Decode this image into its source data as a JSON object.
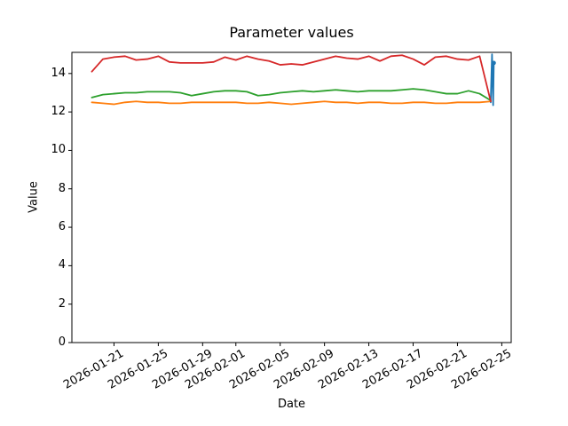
{
  "chart_data": {
    "type": "line",
    "title": "Parameter values",
    "xlabel": "Date",
    "ylabel": "Value",
    "grid": false,
    "legend": false,
    "ylim": [
      0,
      15.1
    ],
    "xlim_days": [
      -1.8,
      37.85
    ],
    "x_day_origin": "2026-01-19",
    "x_dates": [
      "2026-01-19",
      "2026-01-20",
      "2026-01-21",
      "2026-01-22",
      "2026-01-23",
      "2026-01-24",
      "2026-01-25",
      "2026-01-26",
      "2026-01-27",
      "2026-01-28",
      "2026-01-29",
      "2026-01-30",
      "2026-01-31",
      "2026-02-01",
      "2026-02-02",
      "2026-02-03",
      "2026-02-04",
      "2026-02-05",
      "2026-02-06",
      "2026-02-07",
      "2026-02-08",
      "2026-02-09",
      "2026-02-10",
      "2026-02-11",
      "2026-02-12",
      "2026-02-13",
      "2026-02-14",
      "2026-02-15",
      "2026-02-16",
      "2026-02-17",
      "2026-02-18",
      "2026-02-19",
      "2026-02-20",
      "2026-02-21",
      "2026-02-22",
      "2026-02-23",
      "2026-02-24"
    ],
    "series": [
      {
        "name": "blue",
        "color": "#1f77b4",
        "end_marker": true,
        "points": [
          {
            "x_day": 36.0,
            "value": 12.5
          },
          {
            "x_day": 36.12,
            "value": 15.0
          },
          {
            "x_day": 36.22,
            "value": 12.35
          },
          {
            "x_day": 36.28,
            "value": 14.55
          }
        ]
      },
      {
        "name": "orange",
        "color": "#ff7f0e",
        "values": [
          12.5,
          12.45,
          12.4,
          12.5,
          12.55,
          12.5,
          12.5,
          12.45,
          12.45,
          12.5,
          12.5,
          12.5,
          12.5,
          12.5,
          12.45,
          12.45,
          12.5,
          12.45,
          12.4,
          12.45,
          12.5,
          12.55,
          12.5,
          12.5,
          12.45,
          12.5,
          12.5,
          12.45,
          12.45,
          12.5,
          12.5,
          12.45,
          12.45,
          12.5,
          12.5,
          12.5,
          12.55
        ]
      },
      {
        "name": "green",
        "color": "#2ca02c",
        "values": [
          12.75,
          12.9,
          12.95,
          13.0,
          13.0,
          13.05,
          13.05,
          13.05,
          13.0,
          12.85,
          12.95,
          13.05,
          13.1,
          13.1,
          13.05,
          12.85,
          12.9,
          13.0,
          13.05,
          13.1,
          13.05,
          13.1,
          13.15,
          13.1,
          13.05,
          13.1,
          13.1,
          13.1,
          13.15,
          13.2,
          13.15,
          13.05,
          12.95,
          12.95,
          13.1,
          12.95,
          12.6
        ]
      },
      {
        "name": "red",
        "color": "#d62728",
        "values": [
          14.1,
          14.75,
          14.85,
          14.9,
          14.7,
          14.75,
          14.9,
          14.6,
          14.55,
          14.55,
          14.55,
          14.6,
          14.85,
          14.7,
          14.9,
          14.75,
          14.65,
          14.45,
          14.5,
          14.45,
          14.6,
          14.75,
          14.9,
          14.8,
          14.75,
          14.9,
          14.65,
          14.9,
          14.95,
          14.75,
          14.45,
          14.85,
          14.9,
          14.75,
          14.7,
          14.9,
          12.55
        ]
      }
    ],
    "xticks": [
      {
        "x_day": 2,
        "label": "2026-01-21"
      },
      {
        "x_day": 6,
        "label": "2026-01-25"
      },
      {
        "x_day": 10,
        "label": "2026-01-29"
      },
      {
        "x_day": 13,
        "label": "2026-02-01"
      },
      {
        "x_day": 17,
        "label": "2026-02-05"
      },
      {
        "x_day": 21,
        "label": "2026-02-09"
      },
      {
        "x_day": 25,
        "label": "2026-02-13"
      },
      {
        "x_day": 29,
        "label": "2026-02-17"
      },
      {
        "x_day": 33,
        "label": "2026-02-21"
      },
      {
        "x_day": 37,
        "label": "2026-02-25"
      }
    ],
    "yticks": [
      0,
      2,
      4,
      6,
      8,
      10,
      12,
      14
    ]
  }
}
